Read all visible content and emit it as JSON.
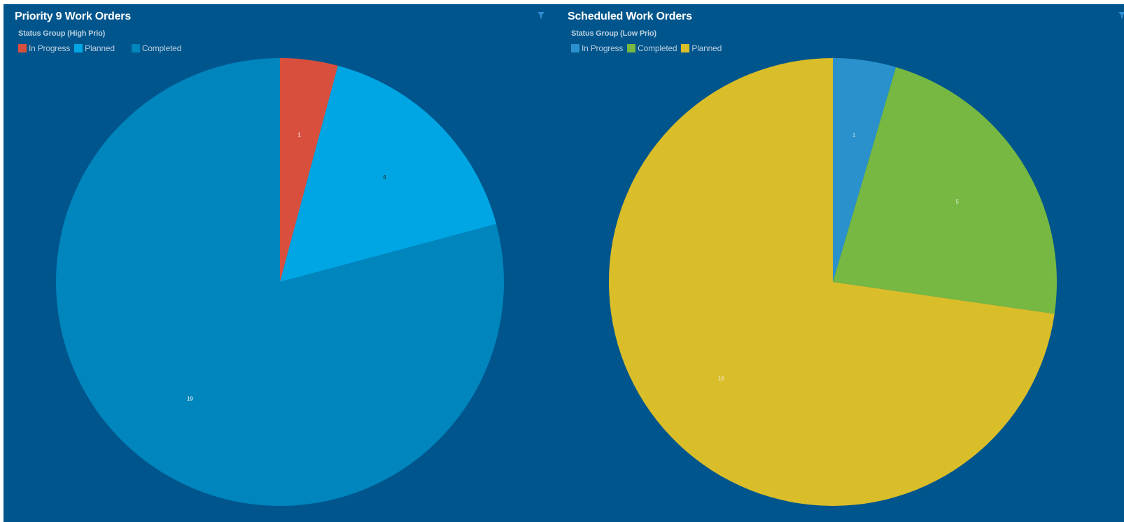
{
  "colors": {
    "background": "#00558c",
    "legend_text": "#b9cfe0",
    "title_text": "#ffffff"
  },
  "panels": [
    {
      "title": "Priority 9 Work Orders",
      "filter_icon": "filter-icon",
      "legend_title": "Status Group (High Prio)"
    },
    {
      "title": "Scheduled Work Orders",
      "filter_icon": "filter-icon",
      "legend_title": "Status Group (Low Prio)"
    }
  ],
  "chart_data": [
    {
      "type": "pie",
      "title": "Priority 9 Work Orders",
      "legend_title": "Status Group (High Prio)",
      "legend_position": "top-left",
      "slices": [
        {
          "label": "In Progress",
          "value": 1,
          "color": "#d94f3d",
          "label_color": "#ffffff"
        },
        {
          "label": "Planned",
          "value": 4,
          "color": "#00a6e4",
          "label_color": "#1a1a1a"
        },
        {
          "label": "Completed",
          "value": 19,
          "color": "#0085bd",
          "label_color": "#ffffff"
        }
      ]
    },
    {
      "type": "pie",
      "title": "Scheduled Work Orders",
      "legend_title": "Status Group (Low Prio)",
      "legend_position": "top-left",
      "slices": [
        {
          "label": "In Progress",
          "value": 1,
          "color": "#2a91cc",
          "label_color": "#d0e4f0"
        },
        {
          "label": "Completed",
          "value": 5,
          "color": "#76b842",
          "label_color": "#e6f0d8"
        },
        {
          "label": "Planned",
          "value": 16,
          "color": "#d9be2a",
          "label_color": "#f3ead0"
        }
      ]
    }
  ]
}
